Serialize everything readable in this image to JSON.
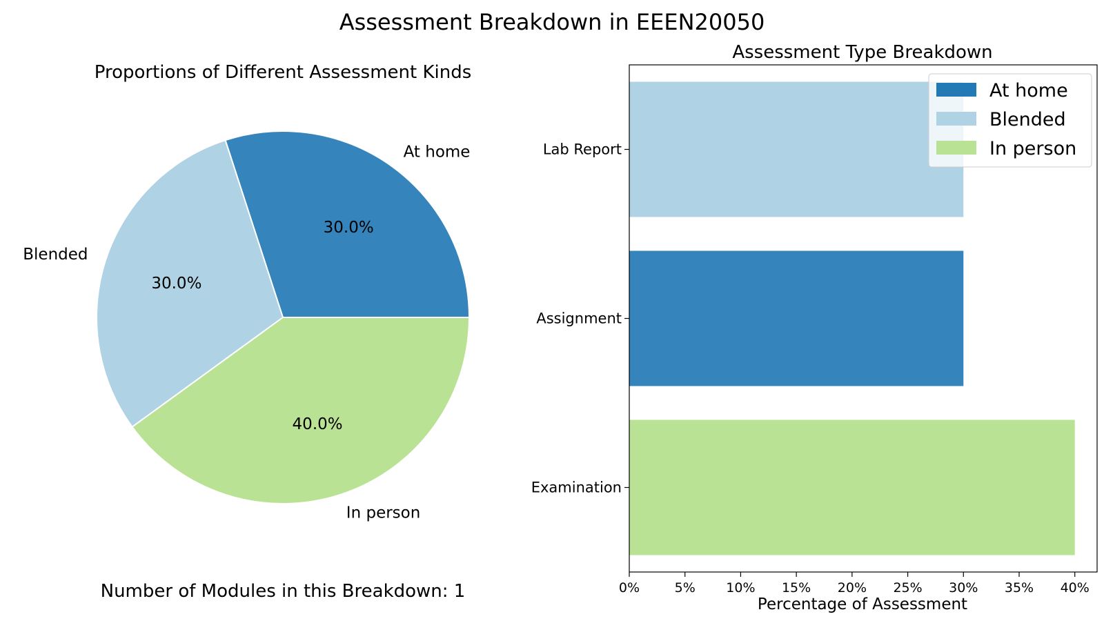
{
  "figure_title": "Assessment Breakdown in EEEN20050",
  "footer_text": "Number of Modules in this Breakdown: 1",
  "colors": {
    "at_home": "#3584bb",
    "blended": "#afd2e4",
    "in_person": "#bae294",
    "legend_at_home": "#2279b5"
  },
  "chart_data": [
    {
      "type": "pie",
      "title": "Proportions of Different Assessment Kinds",
      "slices": [
        {
          "label": "At home",
          "value": 30.0,
          "pct_label": "30.0%",
          "color": "#3584bb"
        },
        {
          "label": "Blended",
          "value": 30.0,
          "pct_label": "30.0%",
          "color": "#afd2e4"
        },
        {
          "label": "In person",
          "value": 40.0,
          "pct_label": "40.0%",
          "color": "#bae294"
        }
      ]
    },
    {
      "type": "bar",
      "orientation": "horizontal",
      "title": "Assessment Type Breakdown",
      "xlabel": "Percentage of Assessment",
      "ylabel": "",
      "xlim": [
        0,
        42
      ],
      "x_ticks": [
        0,
        5,
        10,
        15,
        20,
        25,
        30,
        35,
        40
      ],
      "x_tick_labels": [
        "0%",
        "5%",
        "10%",
        "15%",
        "20%",
        "25%",
        "30%",
        "35%",
        "40%"
      ],
      "categories": [
        "Lab Report",
        "Assignment",
        "Examination"
      ],
      "values": [
        30,
        30,
        40
      ],
      "bar_kinds": [
        "Blended",
        "At home",
        "In person"
      ],
      "bar_colors": [
        "#afd2e4",
        "#3584bb",
        "#bae294"
      ],
      "legend": {
        "position": "top-right",
        "entries": [
          {
            "label": "At home",
            "color": "#2279b5"
          },
          {
            "label": "Blended",
            "color": "#afd2e4"
          },
          {
            "label": "In person",
            "color": "#bae294"
          }
        ]
      },
      "grid": false
    }
  ]
}
